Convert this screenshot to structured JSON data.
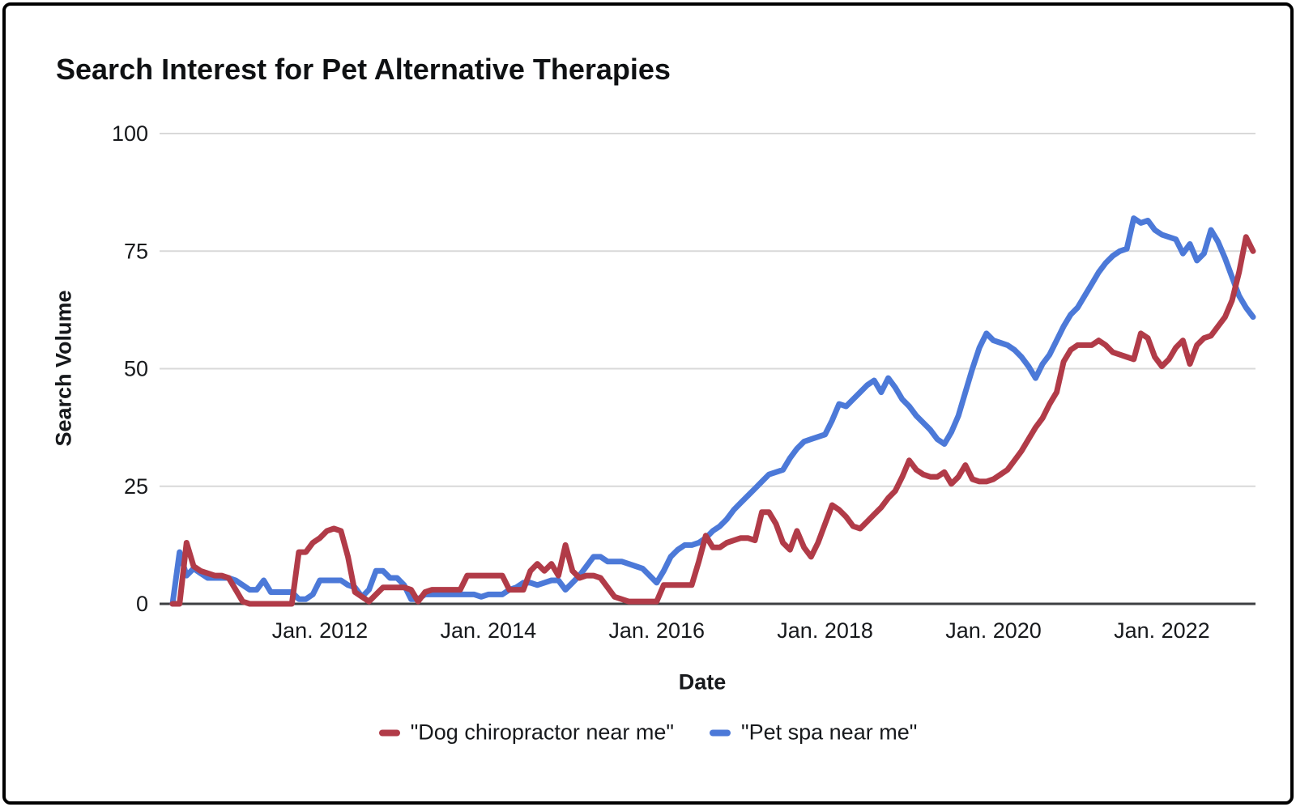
{
  "colors": {
    "red": "#b13b48",
    "blue": "#4c79d8",
    "gridline": "#d9d9d9",
    "axis_line": "#3d3f42",
    "text": "#17191c"
  },
  "chart_data": {
    "type": "line",
    "title": "Search Interest for Pet Alternative Therapies",
    "xlabel": "Date",
    "ylabel": "Search Volume",
    "ylim": [
      0,
      100
    ],
    "grid": true,
    "legend_position": "bottom",
    "x_unit": "month",
    "x_start": "2010-04",
    "x_end": "2023-02",
    "y_ticks": [
      {
        "label": "0",
        "value": 0
      },
      {
        "label": "25",
        "value": 25
      },
      {
        "label": "50",
        "value": 50
      },
      {
        "label": "75",
        "value": 75
      },
      {
        "label": "100",
        "value": 100
      }
    ],
    "x_ticks": [
      {
        "label": "Jan. 2012",
        "month_index": 21
      },
      {
        "label": "Jan. 2014",
        "month_index": 45
      },
      {
        "label": "Jan. 2016",
        "month_index": 69
      },
      {
        "label": "Jan. 2018",
        "month_index": 93
      },
      {
        "label": "Jan. 2020",
        "month_index": 117
      },
      {
        "label": "Jan. 2022",
        "month_index": 141
      }
    ],
    "series": [
      {
        "id": "dog-chiropractor",
        "name": "\"Dog chiropractor near me\"",
        "color": "#b13b48",
        "values": [
          0,
          0,
          13,
          8,
          7,
          6.5,
          6,
          6,
          5.5,
          3,
          0.5,
          0,
          0,
          0,
          0,
          0,
          0,
          0,
          11,
          11,
          13,
          14,
          15.5,
          16,
          15.5,
          10,
          2.5,
          1.5,
          0.5,
          2,
          3.5,
          3.5,
          3.5,
          3.5,
          3,
          0.5,
          2.5,
          3,
          3,
          3,
          3,
          3,
          6,
          6,
          6,
          6,
          6,
          6,
          3,
          3,
          3,
          7,
          8.5,
          7,
          8.5,
          6,
          12.5,
          7,
          5.5,
          6,
          6,
          5.5,
          3.5,
          1.5,
          1,
          0.5,
          0.5,
          0.5,
          0.5,
          0.5,
          4,
          4,
          4,
          4,
          4,
          9,
          14.5,
          12,
          12,
          13,
          13.5,
          14,
          14,
          13.5,
          19.5,
          19.5,
          17,
          13,
          11.5,
          15.5,
          12,
          10,
          13,
          17,
          21,
          20,
          18.5,
          16.5,
          16,
          17.5,
          19,
          20.5,
          22.5,
          24,
          27,
          30.5,
          28.5,
          27.5,
          27,
          27,
          28,
          25.5,
          27,
          29.5,
          26.5,
          26,
          26,
          26.5,
          27.5,
          28.5,
          30.5,
          32.5,
          35,
          37.5,
          39.5,
          42.5,
          45,
          51.5,
          54,
          55,
          55,
          55,
          56,
          55,
          53.5,
          53,
          52.5,
          52,
          57.5,
          56.5,
          52.5,
          50.5,
          52,
          54.5,
          56,
          51,
          55,
          56.5,
          57,
          59,
          61,
          64.5,
          70.5,
          78,
          75
        ]
      },
      {
        "id": "pet-spa",
        "name": "\"Pet spa near me\"",
        "color": "#4c79d8",
        "values": [
          0,
          11,
          6,
          7.5,
          6.5,
          5.5,
          5.5,
          5.5,
          5.5,
          5,
          4,
          3,
          3,
          5,
          2.5,
          2.5,
          2.5,
          2.5,
          1,
          1,
          2,
          5,
          5,
          5,
          5,
          4,
          3.5,
          1.5,
          3,
          7,
          7,
          5.5,
          5.5,
          4,
          1,
          1,
          2,
          2,
          2,
          2,
          2,
          2,
          2,
          2,
          1.5,
          2,
          2,
          2,
          3,
          3.5,
          4.5,
          4.5,
          4,
          4.5,
          5,
          5,
          3,
          4.5,
          6,
          8,
          10,
          10,
          9,
          9,
          9,
          8.5,
          8,
          7.5,
          6,
          4.5,
          7,
          10,
          11.5,
          12.5,
          12.5,
          13,
          14,
          15.5,
          16.5,
          18,
          20,
          21.5,
          23,
          24.5,
          26,
          27.5,
          28,
          28.5,
          31,
          33,
          34.5,
          35,
          35.5,
          36,
          39,
          42.5,
          42,
          43.5,
          45,
          46.5,
          47.5,
          45,
          48,
          46,
          43.5,
          42,
          40,
          38.5,
          37,
          35,
          34,
          36.5,
          40,
          45,
          50,
          54.5,
          57.5,
          56,
          55.5,
          55,
          54,
          52.5,
          50.5,
          48,
          51,
          53,
          56,
          59,
          61.5,
          63,
          65.5,
          68,
          70.5,
          72.5,
          74,
          75,
          75.5,
          82,
          81,
          81.5,
          79.5,
          78.5,
          78,
          77.5,
          74.5,
          76.5,
          73,
          74.5,
          79.5,
          77,
          73.5,
          69.5,
          65.5,
          63,
          61
        ]
      }
    ]
  }
}
